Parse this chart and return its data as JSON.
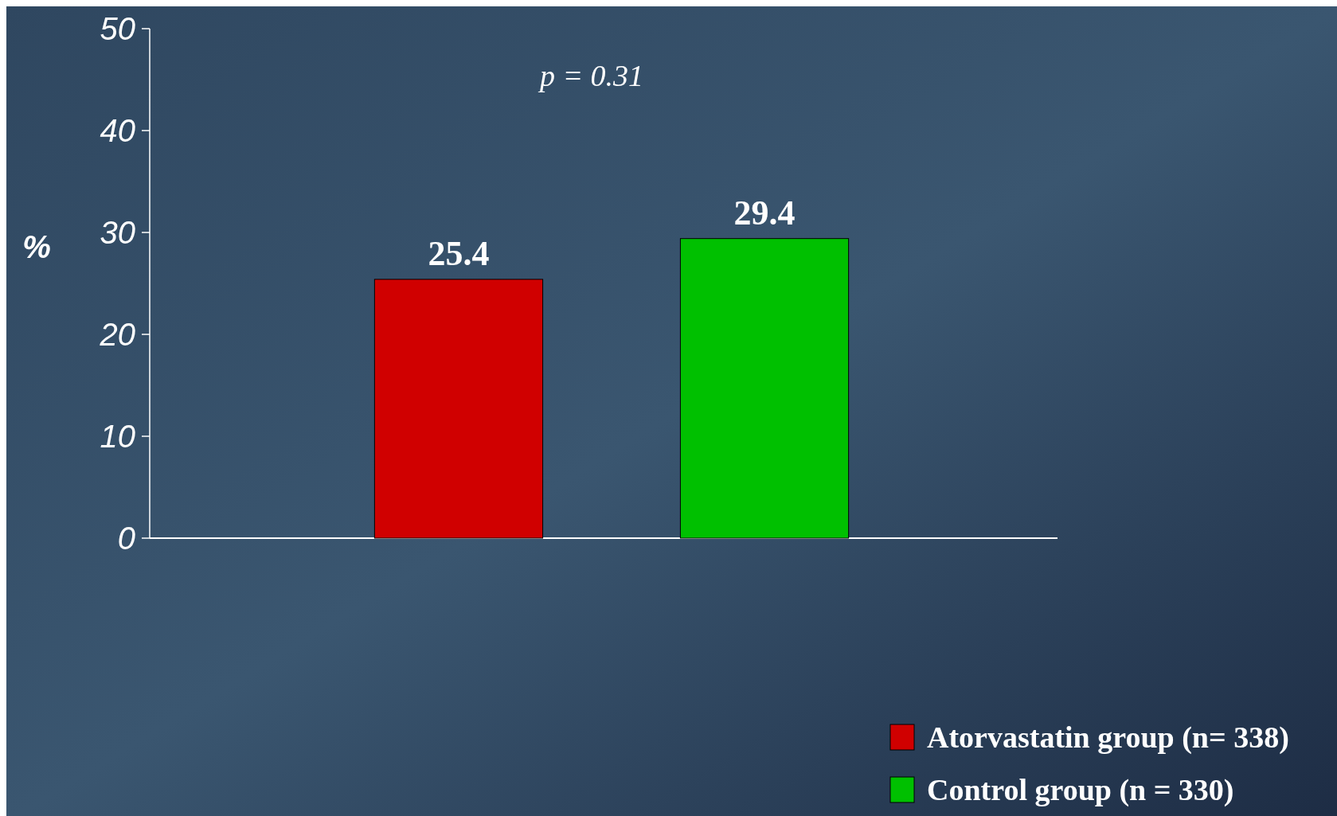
{
  "chart_data": {
    "type": "bar",
    "ylabel": "%",
    "categories": [
      null
    ],
    "series": [
      {
        "name": "Atorvastatin group (n= 338)",
        "color": "#d00000",
        "values": [
          25.4
        ]
      },
      {
        "name": "Control group (n = 330)",
        "color": "#00c000",
        "values": [
          29.4
        ]
      }
    ],
    "ylim": [
      0,
      50
    ],
    "yticks": [
      0,
      10,
      20,
      30,
      40,
      50
    ],
    "data_labels": true,
    "legend": "bottom right",
    "grid": false,
    "annotations": [
      "p = 0.31"
    ]
  }
}
